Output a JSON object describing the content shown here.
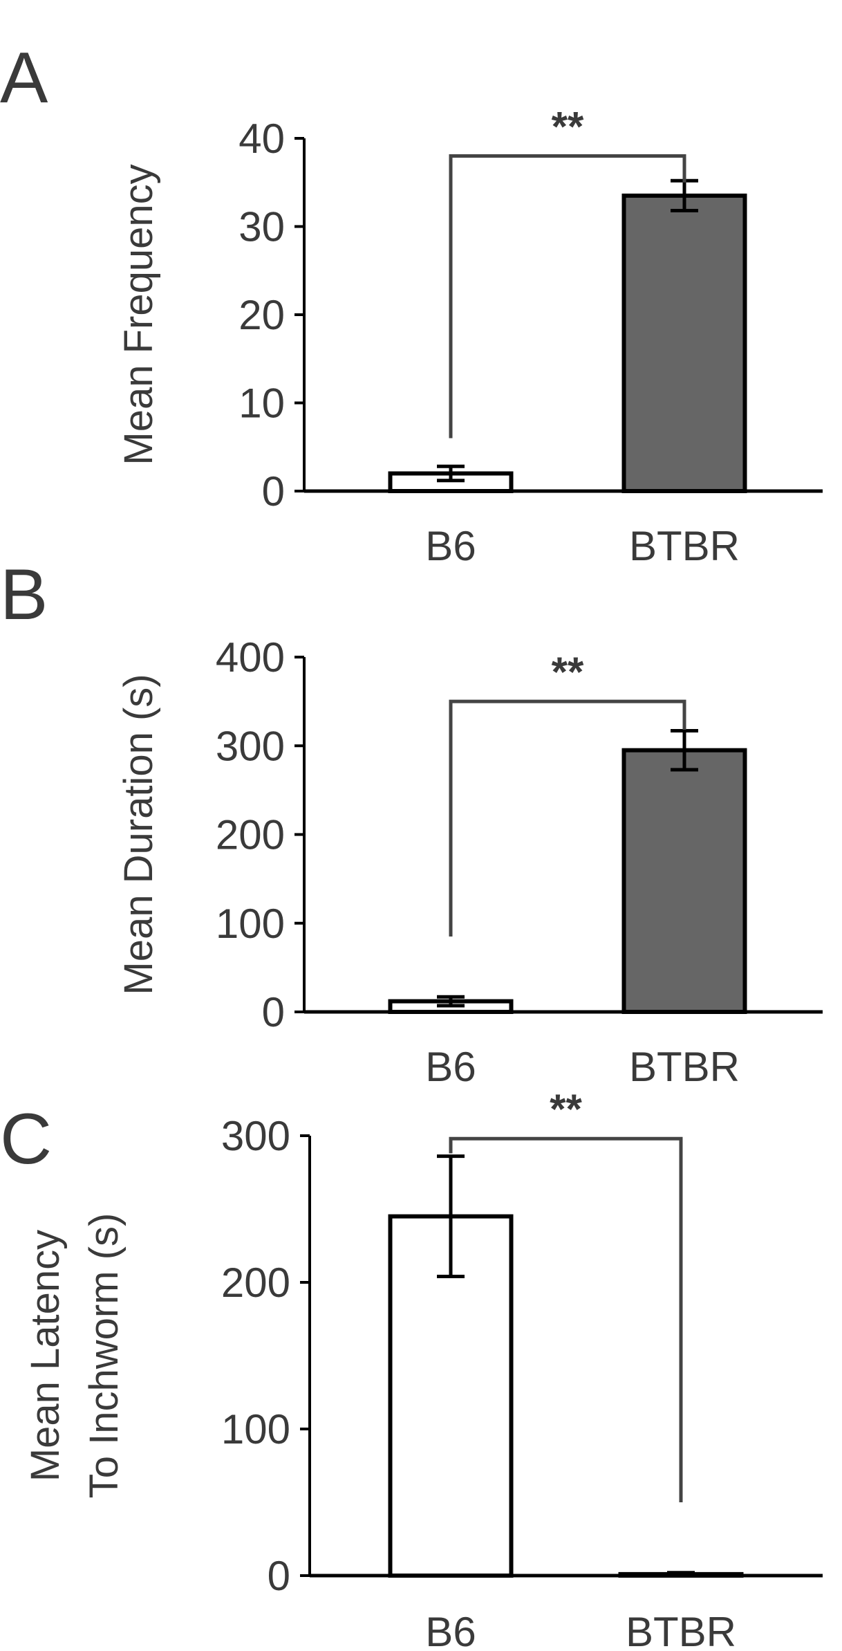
{
  "chart_data": [
    {
      "type": "bar",
      "panel_letter": "A",
      "categories": [
        "B6",
        "BTBR"
      ],
      "values": [
        2,
        33.5
      ],
      "errors": [
        0.8,
        1.7
      ],
      "bar_colors": [
        "#ffffff",
        "#666666"
      ],
      "ylabel_lines": [
        "Mean Frequency"
      ],
      "ylim": [
        0,
        40
      ],
      "yticks": [
        0,
        10,
        20,
        30,
        40
      ],
      "significance": {
        "label": "**",
        "from": 0,
        "to": 1,
        "anchor": "top",
        "y": 38,
        "left_drop_to": 6,
        "right_drop_to": 35
      }
    },
    {
      "type": "bar",
      "panel_letter": "B",
      "categories": [
        "B6",
        "BTBR"
      ],
      "values": [
        12,
        295
      ],
      "errors": [
        5,
        22
      ],
      "bar_colors": [
        "#ffffff",
        "#666666"
      ],
      "ylabel_lines": [
        "Mean Duration (s)"
      ],
      "ylim": [
        0,
        400
      ],
      "yticks": [
        0,
        100,
        200,
        300,
        400
      ],
      "significance": {
        "label": "**",
        "from": 0,
        "to": 1,
        "anchor": "top",
        "y": 350,
        "left_drop_to": 85,
        "right_drop_to": 318
      }
    },
    {
      "type": "bar",
      "panel_letter": "C",
      "categories": [
        "B6",
        "BTBR"
      ],
      "values": [
        245,
        1
      ],
      "errors": [
        41,
        1
      ],
      "bar_colors": [
        "#ffffff",
        "#666666"
      ],
      "ylabel_lines": [
        "Mean Latency",
        "To Inchworm (s)"
      ],
      "ylim": [
        0,
        300
      ],
      "yticks": [
        0,
        100,
        200,
        300
      ],
      "significance": {
        "label": "**",
        "from": 0,
        "to": 1,
        "anchor": "top",
        "y": 298,
        "left_drop_to": 288,
        "right_drop_to": 50
      }
    }
  ]
}
